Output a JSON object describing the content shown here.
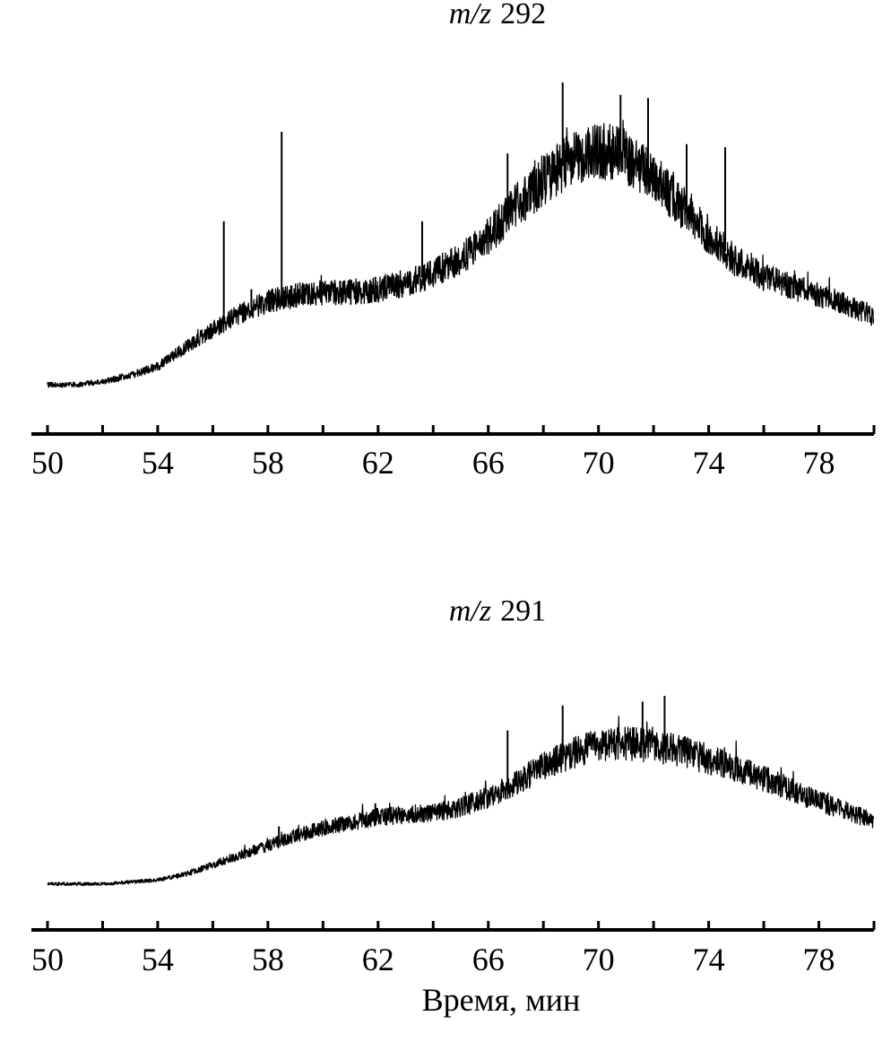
{
  "chart_data": [
    {
      "type": "line",
      "title": {
        "prefix": "m/z",
        "value": "292"
      },
      "xlabel": "",
      "ylabel": "",
      "xlim": [
        50,
        80
      ],
      "x_tick_labels": [
        "50",
        "54",
        "58",
        "62",
        "66",
        "70",
        "74",
        "78"
      ],
      "minor_tick_step": 2,
      "series": [
        {
          "x": [
            50,
            51,
            52,
            53,
            54,
            55,
            56,
            57,
            58,
            59,
            60,
            61,
            62,
            63,
            64,
            65,
            66,
            67,
            68,
            69,
            70,
            71,
            72,
            73,
            74,
            75,
            76,
            77,
            78,
            79,
            80
          ],
          "values": [
            0.02,
            0.02,
            0.03,
            0.05,
            0.08,
            0.14,
            0.2,
            0.25,
            0.29,
            0.31,
            0.32,
            0.32,
            0.33,
            0.35,
            0.38,
            0.43,
            0.5,
            0.6,
            0.68,
            0.75,
            0.78,
            0.76,
            0.7,
            0.6,
            0.5,
            0.42,
            0.37,
            0.34,
            0.31,
            0.28,
            0.24
          ],
          "spikes": [
            [
              56.4,
              0.55
            ],
            [
              57.4,
              0.33
            ],
            [
              58.5,
              0.84
            ],
            [
              61.9,
              0.37
            ],
            [
              63.6,
              0.55
            ],
            [
              66.7,
              0.77
            ],
            [
              68.7,
              1.0
            ],
            [
              70.8,
              0.96
            ],
            [
              71.8,
              0.95
            ],
            [
              73.2,
              0.8
            ],
            [
              74.6,
              0.79
            ]
          ]
        }
      ]
    },
    {
      "type": "line",
      "title": {
        "prefix": "m/z",
        "value": "291"
      },
      "xlabel": "Время, мин",
      "ylabel": "",
      "xlim": [
        50,
        80
      ],
      "x_tick_labels": [
        "50",
        "54",
        "58",
        "62",
        "66",
        "70",
        "74",
        "78"
      ],
      "minor_tick_step": 2,
      "series": [
        {
          "x": [
            50,
            51,
            52,
            53,
            54,
            55,
            56,
            57,
            58,
            59,
            60,
            61,
            62,
            63,
            64,
            65,
            66,
            67,
            68,
            69,
            70,
            71,
            72,
            73,
            74,
            75,
            76,
            77,
            78,
            79,
            80
          ],
          "values": [
            0.02,
            0.02,
            0.02,
            0.03,
            0.04,
            0.07,
            0.12,
            0.17,
            0.22,
            0.27,
            0.31,
            0.34,
            0.37,
            0.38,
            0.39,
            0.42,
            0.47,
            0.55,
            0.63,
            0.7,
            0.74,
            0.75,
            0.74,
            0.71,
            0.67,
            0.62,
            0.57,
            0.51,
            0.45,
            0.4,
            0.35
          ],
          "spikes": [
            [
              58.4,
              0.32
            ],
            [
              61.9,
              0.44
            ],
            [
              66.7,
              0.82
            ],
            [
              68.7,
              0.95
            ],
            [
              71.6,
              0.97
            ],
            [
              72.4,
              1.0
            ]
          ]
        }
      ]
    }
  ]
}
